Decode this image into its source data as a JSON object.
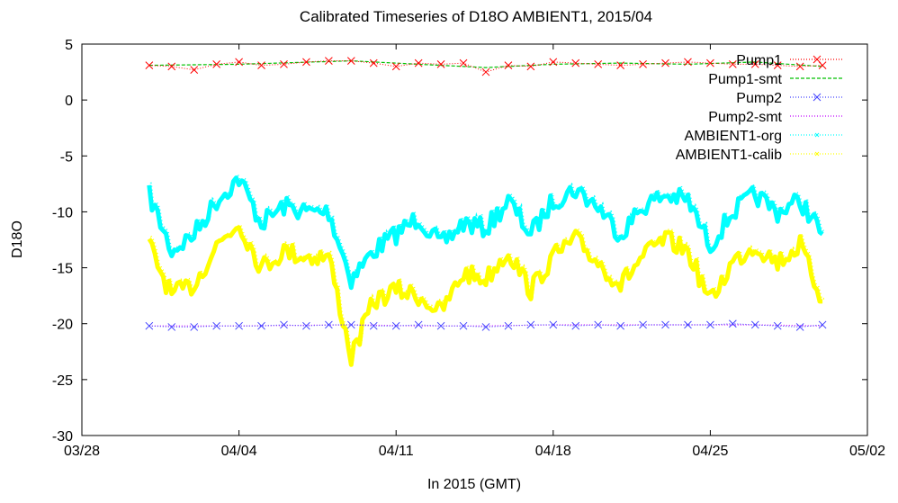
{
  "chart_data": {
    "type": "line",
    "title": "Calibrated Timeseries of D18O AMBIENT1, 2015/04",
    "xlabel": "In 2015 (GMT)",
    "ylabel": "D18O",
    "x_range": [
      "2015-03-28",
      "2015-05-02"
    ],
    "x_ticks": [
      "03/28",
      "04/04",
      "04/11",
      "04/18",
      "04/25",
      "05/02"
    ],
    "ylim": [
      -30,
      5
    ],
    "y_ticks": [
      "5",
      "0",
      "-5",
      "-10",
      "-15",
      "-20",
      "-25",
      "-30"
    ],
    "grid": false,
    "legend_position": "top-right",
    "series": [
      {
        "name": "Pump1",
        "color": "#ff0000",
        "style": "points-x",
        "x": [
          "2015-03-31",
          "2015-04-01",
          "2015-04-02",
          "2015-04-03",
          "2015-04-04",
          "2015-04-05",
          "2015-04-06",
          "2015-04-07",
          "2015-04-08",
          "2015-04-09",
          "2015-04-10",
          "2015-04-11",
          "2015-04-12",
          "2015-04-13",
          "2015-04-14",
          "2015-04-15",
          "2015-04-16",
          "2015-04-17",
          "2015-04-18",
          "2015-04-19",
          "2015-04-20",
          "2015-04-21",
          "2015-04-22",
          "2015-04-23",
          "2015-04-24",
          "2015-04-25",
          "2015-04-26",
          "2015-04-27",
          "2015-04-28",
          "2015-04-29",
          "2015-04-30"
        ],
        "y": [
          3.1,
          3.0,
          2.7,
          3.2,
          3.4,
          3.1,
          3.2,
          3.4,
          3.5,
          3.5,
          3.3,
          3.0,
          3.3,
          3.2,
          3.3,
          2.5,
          3.1,
          3.0,
          3.4,
          3.3,
          3.2,
          3.1,
          3.2,
          3.3,
          3.4,
          3.3,
          3.2,
          3.2,
          3.1,
          3.0,
          3.1
        ]
      },
      {
        "name": "Pump1-smt",
        "color": "#00c000",
        "style": "dashed",
        "x": [
          "2015-03-31",
          "2015-04-04",
          "2015-04-09",
          "2015-04-12",
          "2015-04-15",
          "2015-04-18",
          "2015-04-21",
          "2015-04-24",
          "2015-04-27",
          "2015-04-30"
        ],
        "y": [
          3.1,
          3.2,
          3.5,
          3.2,
          2.9,
          3.2,
          3.3,
          3.2,
          3.4,
          3.0
        ]
      },
      {
        "name": "Pump2",
        "color": "#4040ff",
        "style": "points-x",
        "x": [
          "2015-03-31",
          "2015-04-01",
          "2015-04-02",
          "2015-04-03",
          "2015-04-04",
          "2015-04-05",
          "2015-04-06",
          "2015-04-07",
          "2015-04-08",
          "2015-04-09",
          "2015-04-10",
          "2015-04-11",
          "2015-04-12",
          "2015-04-13",
          "2015-04-14",
          "2015-04-15",
          "2015-04-16",
          "2015-04-17",
          "2015-04-18",
          "2015-04-19",
          "2015-04-20",
          "2015-04-21",
          "2015-04-22",
          "2015-04-23",
          "2015-04-24",
          "2015-04-25",
          "2015-04-26",
          "2015-04-27",
          "2015-04-28",
          "2015-04-29",
          "2015-04-30"
        ],
        "y": [
          -20.2,
          -20.3,
          -20.3,
          -20.2,
          -20.2,
          -20.2,
          -20.1,
          -20.2,
          -20.1,
          -20.1,
          -20.2,
          -20.2,
          -20.1,
          -20.2,
          -20.2,
          -20.3,
          -20.2,
          -20.1,
          -20.1,
          -20.2,
          -20.1,
          -20.2,
          -20.1,
          -20.1,
          -20.1,
          -20.1,
          -20.0,
          -20.1,
          -20.2,
          -20.3,
          -20.1
        ]
      },
      {
        "name": "Pump2-smt",
        "color": "#c000ff",
        "style": "dotted",
        "x": [
          "2015-03-31",
          "2015-04-04",
          "2015-04-09",
          "2015-04-12",
          "2015-04-15",
          "2015-04-18",
          "2015-04-21",
          "2015-04-24",
          "2015-04-27",
          "2015-04-30"
        ],
        "y": [
          -20.2,
          -20.2,
          -20.1,
          -20.2,
          -20.2,
          -20.1,
          -20.1,
          -20.1,
          -20.1,
          -20.2
        ]
      },
      {
        "name": "AMBIENT1-org",
        "color": "#00ffff",
        "style": "dense",
        "x": [
          "2015-03-31",
          "2015-04-01",
          "2015-04-02",
          "2015-04-03",
          "2015-04-04",
          "2015-04-05",
          "2015-04-06",
          "2015-04-07",
          "2015-04-08",
          "2015-04-09",
          "2015-04-10",
          "2015-04-11",
          "2015-04-12",
          "2015-04-13",
          "2015-04-14",
          "2015-04-15",
          "2015-04-16",
          "2015-04-17",
          "2015-04-18",
          "2015-04-19",
          "2015-04-20",
          "2015-04-21",
          "2015-04-22",
          "2015-04-23",
          "2015-04-24",
          "2015-04-25",
          "2015-04-26",
          "2015-04-27",
          "2015-04-28",
          "2015-04-29",
          "2015-04-30"
        ],
        "y": [
          -8.5,
          -13.5,
          -12.0,
          -9.0,
          -7.0,
          -11.0,
          -9.5,
          -10.0,
          -10.0,
          -16.0,
          -13.5,
          -12.0,
          -10.5,
          -13.0,
          -11.0,
          -11.5,
          -9.0,
          -12.0,
          -9.0,
          -8.0,
          -9.5,
          -12.0,
          -9.5,
          -8.5,
          -9.0,
          -13.0,
          -10.0,
          -8.5,
          -10.0,
          -9.0,
          -12.0
        ]
      },
      {
        "name": "AMBIENT1-calib",
        "color": "#ffff00",
        "style": "dense",
        "x": [
          "2015-03-31",
          "2015-04-01",
          "2015-04-02",
          "2015-04-03",
          "2015-04-04",
          "2015-04-05",
          "2015-04-06",
          "2015-04-07",
          "2015-04-08",
          "2015-04-09",
          "2015-04-10",
          "2015-04-11",
          "2015-04-12",
          "2015-04-13",
          "2015-04-14",
          "2015-04-15",
          "2015-04-16",
          "2015-04-17",
          "2015-04-18",
          "2015-04-19",
          "2015-04-20",
          "2015-04-21",
          "2015-04-22",
          "2015-04-23",
          "2015-04-24",
          "2015-04-25",
          "2015-04-26",
          "2015-04-27",
          "2015-04-28",
          "2015-04-29",
          "2015-04-30"
        ],
        "y": [
          -13.0,
          -17.5,
          -16.5,
          -13.0,
          -11.0,
          -15.0,
          -13.5,
          -14.0,
          -14.0,
          -23.0,
          -18.0,
          -17.0,
          -17.5,
          -19.0,
          -15.5,
          -16.0,
          -13.5,
          -17.0,
          -14.0,
          -12.5,
          -14.5,
          -16.5,
          -14.0,
          -12.5,
          -13.5,
          -18.0,
          -14.5,
          -13.0,
          -14.5,
          -13.0,
          -18.0
        ]
      }
    ]
  }
}
